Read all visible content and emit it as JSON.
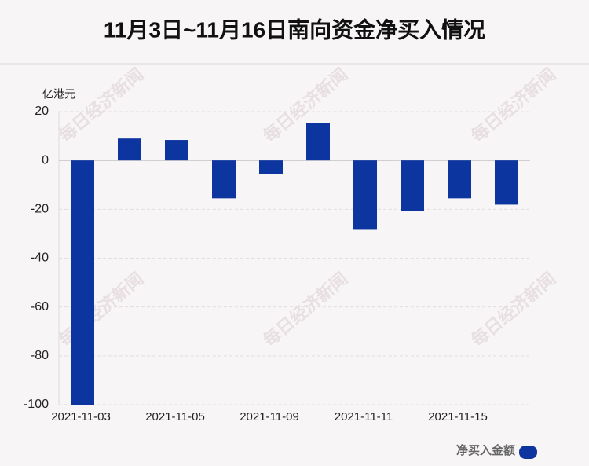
{
  "chart_data": {
    "type": "bar",
    "title": "11月3日~11月16日南向资金净买入情况",
    "y_unit": "亿港元",
    "watermark": "每日经济新闻",
    "categories": [
      "2021-11-03",
      null,
      "2021-11-05",
      null,
      "2021-11-09",
      null,
      "2021-11-11",
      null,
      "2021-11-15",
      null
    ],
    "series": [
      {
        "name": "净买入金额",
        "color": "#0d35a0",
        "values": [
          -100,
          9.0,
          8.4,
          -15.5,
          -5.5,
          15.2,
          -28.4,
          -20.6,
          -15.5,
          -18.1
        ]
      }
    ],
    "ylim": [
      -100,
      20
    ],
    "yticks": [
      -100,
      -80,
      -60,
      -40,
      -20,
      0,
      20
    ],
    "grid": true,
    "legend": "bottom-right"
  }
}
